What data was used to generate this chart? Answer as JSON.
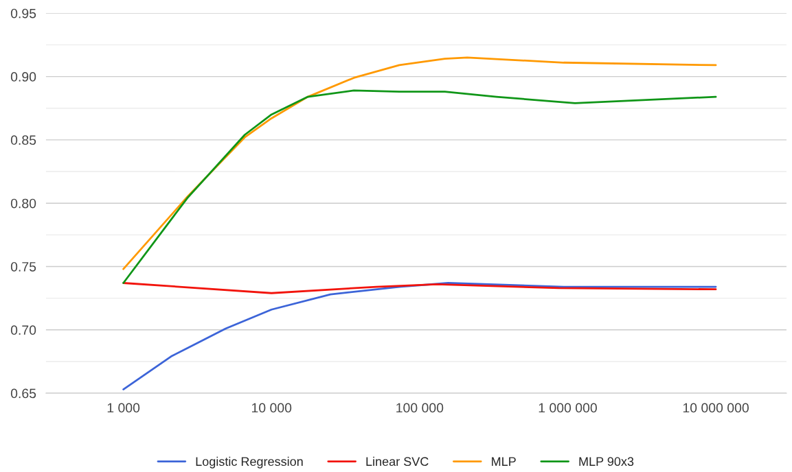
{
  "chart_data": {
    "type": "line",
    "log": "x",
    "grid": "y",
    "legend": "bottom",
    "marker": "none",
    "line_style": "solid",
    "xlim": [
      300,
      30000000
    ],
    "xticks": [
      {
        "value": 1000,
        "label": "1 000"
      },
      {
        "value": 10000,
        "label": "10 000"
      },
      {
        "value": 100000,
        "label": "100 000"
      },
      {
        "value": 1000000,
        "label": "1 000 000"
      },
      {
        "value": 10000000,
        "label": "10 000 000"
      }
    ],
    "ylim": [
      0.65,
      0.95
    ],
    "yticks": [
      {
        "value": 0.65,
        "label": "0.65"
      },
      {
        "value": 0.7,
        "label": "0.70"
      },
      {
        "value": 0.75,
        "label": "0.75"
      },
      {
        "value": 0.8,
        "label": "0.80"
      },
      {
        "value": 0.85,
        "label": "0.85"
      },
      {
        "value": 0.9,
        "label": "0.90"
      },
      {
        "value": 0.95,
        "label": "0.95"
      }
    ],
    "series": [
      {
        "name": "Logistic Regression",
        "color": "#3c64d8",
        "x": [
          1000,
          2100,
          4900,
          10000,
          25000,
          73000,
          156000,
          940000,
          10000000
        ],
        "values": [
          0.653,
          0.679,
          0.701,
          0.716,
          0.728,
          0.734,
          0.737,
          0.734,
          0.734
        ]
      },
      {
        "name": "Linear SVC",
        "color": "#f2140c",
        "x": [
          1000,
          10000,
          51000,
          131000,
          870000,
          10000000
        ],
        "values": [
          0.737,
          0.729,
          0.734,
          0.736,
          0.733,
          0.732
        ]
      },
      {
        "name": "MLP",
        "color": "#ff9900",
        "x": [
          1000,
          2700,
          6600,
          10000,
          17600,
          36000,
          73000,
          148000,
          210000,
          940000,
          10000000
        ],
        "values": [
          0.748,
          0.805,
          0.852,
          0.867,
          0.884,
          0.899,
          0.909,
          0.914,
          0.915,
          0.911,
          0.909
        ]
      },
      {
        "name": "MLP 90x3",
        "color": "#109618",
        "x": [
          1000,
          2700,
          6600,
          10000,
          17600,
          36000,
          73000,
          116000,
          148000,
          330000,
          1120000,
          10000000
        ],
        "values": [
          0.737,
          0.804,
          0.854,
          0.87,
          0.884,
          0.889,
          0.888,
          0.888,
          0.888,
          0.884,
          0.879,
          0.884
        ]
      }
    ]
  }
}
